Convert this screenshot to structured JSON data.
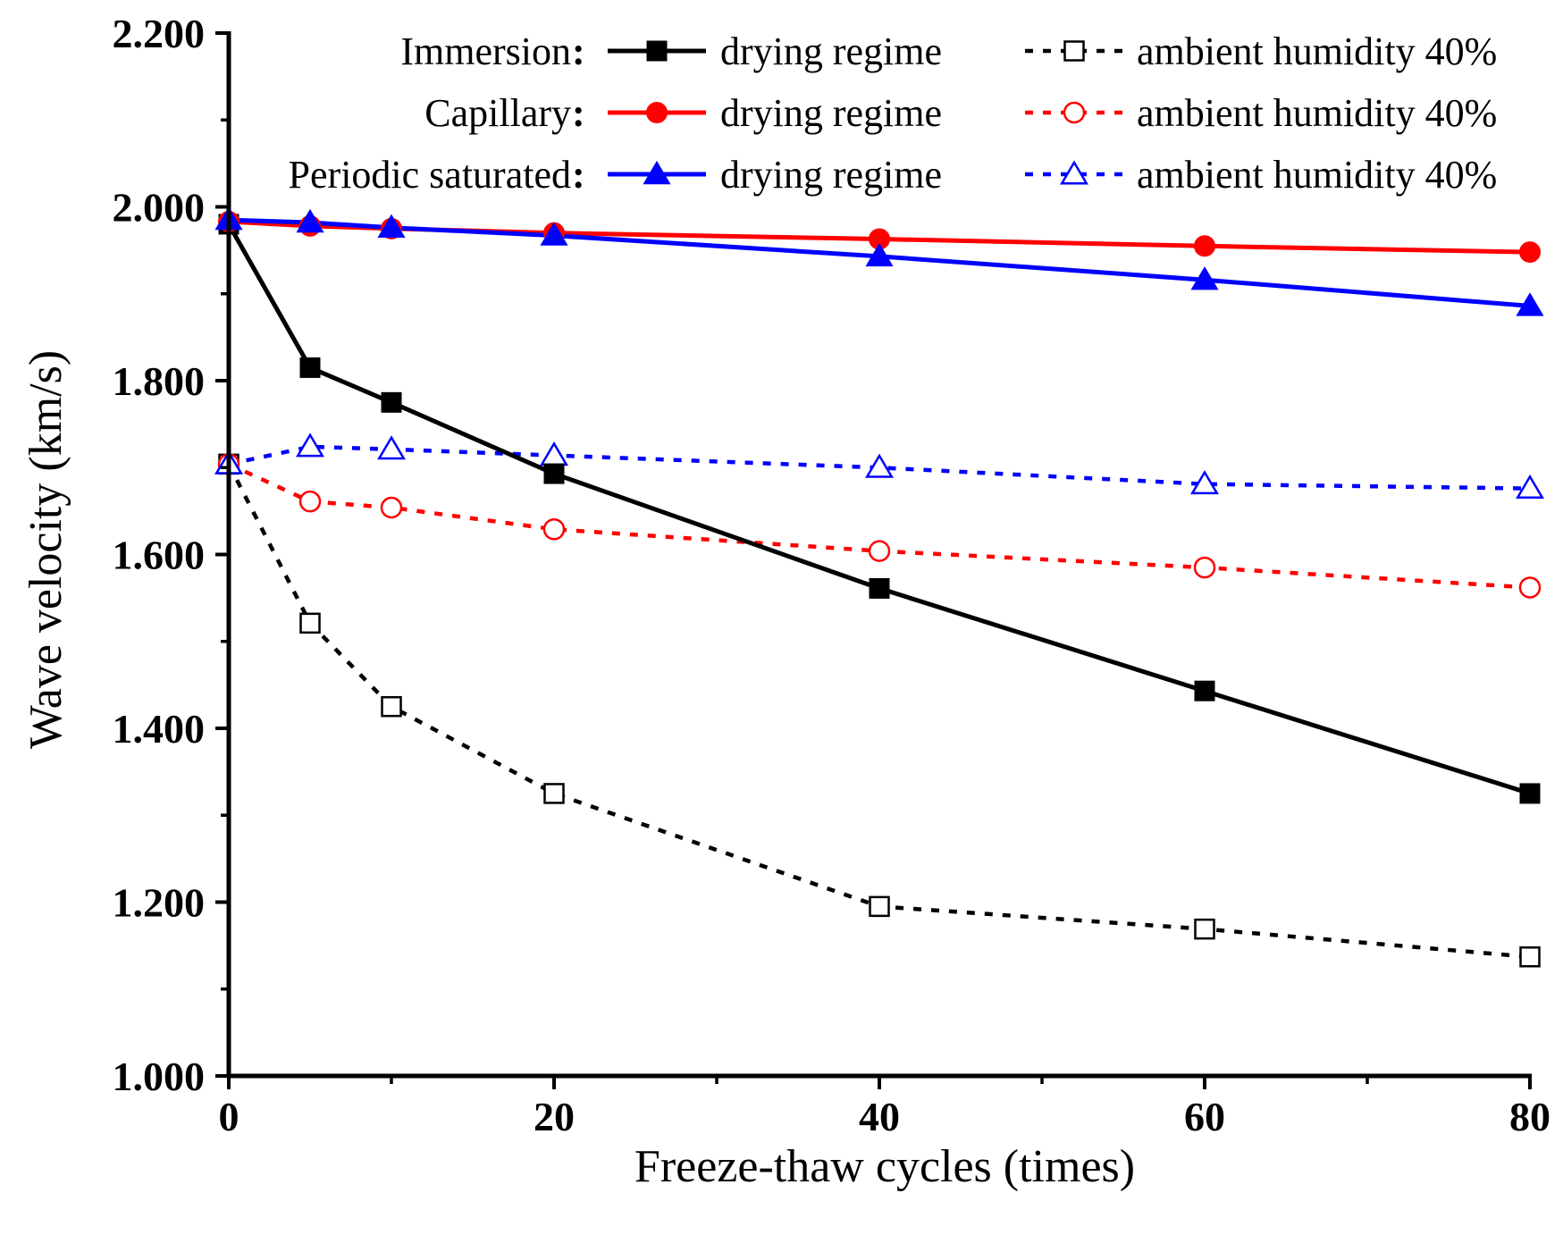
{
  "chart_data": {
    "type": "line",
    "xlabel": "Freeze-thaw cycles (times)",
    "ylabel": "Wave velocity (km/s)",
    "xlim": [
      0,
      80
    ],
    "ylim": [
      1.0,
      2.2
    ],
    "x_ticks": [
      "0",
      "20",
      "40",
      "60",
      "80"
    ],
    "x_tick_values": [
      0,
      20,
      40,
      60,
      80
    ],
    "x_minor_ticks": [
      10,
      30,
      50,
      70
    ],
    "y_ticks": [
      "1.000",
      "1.200",
      "1.400",
      "1.600",
      "1.800",
      "2.000",
      "2.200"
    ],
    "y_tick_values": [
      1.0,
      1.2,
      1.4,
      1.6,
      1.8,
      2.0,
      2.2
    ],
    "y_minor_ticks": [
      1.1,
      1.3,
      1.5,
      1.7,
      1.9,
      2.1
    ],
    "grid": false,
    "legend_position": "top-right",
    "legend_groups": [
      {
        "label": "Immersion",
        "colon": ":",
        "solid_series": "immersion_drying",
        "dashed_series": "immersion_ambient"
      },
      {
        "label": "Capillary",
        "colon": ":",
        "solid_series": "capillary_drying",
        "dashed_series": "capillary_ambient"
      },
      {
        "label": "Periodic saturated",
        "colon": ":",
        "solid_series": "periodic_drying",
        "dashed_series": "periodic_ambient"
      }
    ],
    "series": [
      {
        "id": "immersion_drying",
        "name": "drying regime",
        "group": "Immersion",
        "color": "#000000",
        "line": "solid",
        "marker": "square",
        "filled": true,
        "x": [
          0,
          5,
          10,
          20,
          40,
          60,
          80
        ],
        "y": [
          1.98,
          1.815,
          1.775,
          1.693,
          1.561,
          1.443,
          1.325
        ]
      },
      {
        "id": "immersion_ambient",
        "name": "ambient humidity 40%",
        "group": "Immersion",
        "color": "#000000",
        "line": "dashed",
        "marker": "square",
        "filled": false,
        "x": [
          0,
          5,
          10,
          20,
          40,
          60,
          80
        ],
        "y": [
          1.704,
          1.521,
          1.425,
          1.325,
          1.195,
          1.169,
          1.137
        ]
      },
      {
        "id": "capillary_drying",
        "name": "drying regime",
        "group": "Capillary",
        "color": "#ff0000",
        "line": "solid",
        "marker": "circle",
        "filled": true,
        "x": [
          0,
          5,
          10,
          20,
          40,
          60,
          80
        ],
        "y": [
          1.983,
          1.978,
          1.975,
          1.97,
          1.963,
          1.955,
          1.948
        ]
      },
      {
        "id": "capillary_ambient",
        "name": "ambient humidity 40%",
        "group": "Capillary",
        "color": "#ff0000",
        "line": "dashed",
        "marker": "circle",
        "filled": false,
        "x": [
          0,
          5,
          10,
          20,
          40,
          60,
          80
        ],
        "y": [
          1.704,
          1.661,
          1.654,
          1.629,
          1.604,
          1.585,
          1.562
        ]
      },
      {
        "id": "periodic_drying",
        "name": "drying regime",
        "group": "Periodic saturated",
        "color": "#0000ff",
        "line": "solid",
        "marker": "triangle",
        "filled": true,
        "x": [
          0,
          5,
          10,
          20,
          40,
          60,
          80
        ],
        "y": [
          1.985,
          1.982,
          1.976,
          1.967,
          1.943,
          1.916,
          1.886
        ]
      },
      {
        "id": "periodic_ambient",
        "name": "ambient humidity 40%",
        "group": "Periodic saturated",
        "color": "#0000ff",
        "line": "dashed",
        "marker": "triangle",
        "filled": false,
        "x": [
          0,
          5,
          10,
          20,
          40,
          60,
          80
        ],
        "y": [
          1.704,
          1.724,
          1.721,
          1.714,
          1.7,
          1.681,
          1.676
        ]
      }
    ]
  }
}
